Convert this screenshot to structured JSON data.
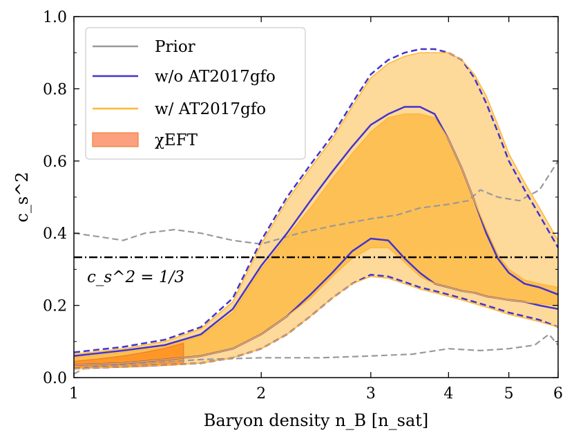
{
  "chart_data": {
    "type": "line",
    "title": "",
    "xlabel": "Baryon density n_B [n_sat]",
    "ylabel": "c_s^2",
    "x_scale": "log",
    "xlim": [
      1,
      6
    ],
    "ylim": [
      0,
      1
    ],
    "x_ticks": [
      1,
      2,
      3,
      4,
      5,
      6
    ],
    "x_tick_labels": [
      "1",
      "2",
      "3",
      "4",
      "5",
      "6"
    ],
    "y_ticks": [
      0.0,
      0.2,
      0.4,
      0.6,
      0.8,
      1.0
    ],
    "y_tick_labels": [
      "0.0",
      "0.2",
      "0.4",
      "0.6",
      "0.8",
      "1.0"
    ],
    "legend_location": "top-left",
    "legend": [
      {
        "key": "prior",
        "label": "Prior"
      },
      {
        "key": "wo",
        "label": "w/o AT2017gfo"
      },
      {
        "key": "w",
        "label": "w/ AT2017gfo"
      },
      {
        "key": "eft",
        "label": "χEFT"
      }
    ],
    "annotation": "c_s^2 = 1/3",
    "conformal_limit": 0.3333,
    "colors": {
      "prior": "#999999",
      "wo": "#4433cc",
      "w_line": "#ffb733",
      "w_fill_90": "#fdd99a",
      "w_fill_68": "#fcc055",
      "eft_fill": "#ff8c1a",
      "eft_edge": "#f08030",
      "eft_legend": "#fca080",
      "black": "#000000"
    },
    "series": [
      {
        "name": "Prior (upper)",
        "key": "prior",
        "style": "dashed",
        "x": [
          1.0,
          1.1,
          1.2,
          1.3,
          1.45,
          1.6,
          1.8,
          2.0,
          2.3,
          2.6,
          3.0,
          3.3,
          3.6,
          4.0,
          4.3,
          4.5,
          4.8,
          5.2,
          5.6,
          6.0
        ],
        "y": [
          0.4,
          0.39,
          0.38,
          0.4,
          0.41,
          0.4,
          0.38,
          0.37,
          0.4,
          0.42,
          0.44,
          0.45,
          0.47,
          0.48,
          0.49,
          0.52,
          0.5,
          0.49,
          0.52,
          0.6
        ]
      },
      {
        "name": "Prior (lower)",
        "key": "prior",
        "style": "dashed",
        "x": [
          1.0,
          1.05,
          1.3,
          1.6,
          2.0,
          2.5,
          3.0,
          3.5,
          4.0,
          4.5,
          5.0,
          5.5,
          5.8,
          6.0
        ],
        "y": [
          0.01,
          0.03,
          0.04,
          0.05,
          0.055,
          0.055,
          0.06,
          0.065,
          0.08,
          0.075,
          0.08,
          0.09,
          0.12,
          0.09
        ]
      },
      {
        "name": "w/o AT2017gfo 90% upper",
        "key": "wo",
        "style": "dashed",
        "x": [
          1.0,
          1.2,
          1.4,
          1.6,
          1.8,
          2.0,
          2.2,
          2.4,
          2.6,
          2.8,
          3.0,
          3.2,
          3.4,
          3.6,
          3.8,
          4.0,
          4.2,
          4.4,
          4.6,
          4.8,
          5.0,
          5.3,
          5.6,
          6.0
        ],
        "y": [
          0.07,
          0.085,
          0.105,
          0.14,
          0.22,
          0.38,
          0.5,
          0.59,
          0.67,
          0.76,
          0.84,
          0.88,
          0.9,
          0.91,
          0.91,
          0.9,
          0.88,
          0.83,
          0.76,
          0.68,
          0.6,
          0.52,
          0.45,
          0.36
        ]
      },
      {
        "name": "w/o AT2017gfo 68% upper",
        "key": "wo",
        "style": "solid",
        "x": [
          1.0,
          1.2,
          1.4,
          1.6,
          1.8,
          2.0,
          2.2,
          2.4,
          2.6,
          2.8,
          3.0,
          3.2,
          3.4,
          3.6,
          3.8,
          4.0,
          4.2,
          4.4,
          4.6,
          4.8,
          5.0,
          5.3,
          5.6,
          6.0
        ],
        "y": [
          0.06,
          0.075,
          0.09,
          0.12,
          0.19,
          0.31,
          0.4,
          0.49,
          0.57,
          0.64,
          0.7,
          0.73,
          0.75,
          0.75,
          0.73,
          0.66,
          0.58,
          0.49,
          0.4,
          0.33,
          0.29,
          0.26,
          0.25,
          0.23
        ]
      },
      {
        "name": "w/o AT2017gfo 68% lower",
        "key": "wo",
        "style": "solid",
        "x": [
          1.0,
          1.2,
          1.4,
          1.6,
          1.8,
          2.0,
          2.2,
          2.4,
          2.6,
          2.8,
          3.0,
          3.2,
          3.4,
          3.6,
          3.8,
          4.0,
          4.2,
          4.4,
          4.6,
          4.8,
          5.0,
          5.3,
          5.6,
          6.0
        ],
        "y": [
          0.035,
          0.04,
          0.05,
          0.06,
          0.08,
          0.12,
          0.17,
          0.23,
          0.29,
          0.35,
          0.385,
          0.38,
          0.33,
          0.29,
          0.26,
          0.25,
          0.24,
          0.235,
          0.225,
          0.22,
          0.215,
          0.21,
          0.2,
          0.19
        ]
      },
      {
        "name": "w/o AT2017gfo 90% lower",
        "key": "wo",
        "style": "dashed",
        "x": [
          1.0,
          1.2,
          1.4,
          1.6,
          1.8,
          2.0,
          2.2,
          2.4,
          2.6,
          2.8,
          3.0,
          3.2,
          3.4,
          3.6,
          3.8,
          4.0,
          4.2,
          4.4,
          4.6,
          4.8,
          5.0,
          5.3,
          5.6,
          6.0
        ],
        "y": [
          0.025,
          0.03,
          0.035,
          0.04,
          0.055,
          0.08,
          0.12,
          0.17,
          0.22,
          0.26,
          0.285,
          0.28,
          0.265,
          0.25,
          0.24,
          0.23,
          0.22,
          0.21,
          0.2,
          0.19,
          0.18,
          0.17,
          0.16,
          0.14
        ]
      },
      {
        "name": "w/ AT2017gfo 90% upper",
        "key": "w",
        "style": "solid",
        "x": [
          1.0,
          1.2,
          1.4,
          1.6,
          1.8,
          2.0,
          2.2,
          2.4,
          2.6,
          2.8,
          3.0,
          3.2,
          3.4,
          3.6,
          3.8,
          4.0,
          4.2,
          4.4,
          4.6,
          4.8,
          5.0,
          5.3,
          5.6,
          6.0
        ],
        "y": [
          0.065,
          0.08,
          0.1,
          0.135,
          0.21,
          0.37,
          0.49,
          0.58,
          0.66,
          0.75,
          0.83,
          0.87,
          0.89,
          0.9,
          0.9,
          0.9,
          0.88,
          0.84,
          0.78,
          0.7,
          0.62,
          0.54,
          0.47,
          0.38
        ]
      },
      {
        "name": "w/ AT2017gfo 68% upper",
        "key": "w",
        "style": "solid",
        "x": [
          1.0,
          1.2,
          1.4,
          1.6,
          1.8,
          2.0,
          2.2,
          2.4,
          2.6,
          2.8,
          3.0,
          3.2,
          3.4,
          3.6,
          3.8,
          4.0,
          4.2,
          4.4,
          4.6,
          4.8,
          5.0,
          5.3,
          5.6,
          6.0
        ],
        "y": [
          0.055,
          0.07,
          0.085,
          0.115,
          0.18,
          0.3,
          0.39,
          0.47,
          0.55,
          0.62,
          0.68,
          0.72,
          0.73,
          0.73,
          0.72,
          0.66,
          0.58,
          0.49,
          0.41,
          0.34,
          0.3,
          0.27,
          0.26,
          0.25
        ]
      },
      {
        "name": "w/ AT2017gfo 68% lower",
        "key": "w",
        "style": "solid",
        "x": [
          1.0,
          1.2,
          1.4,
          1.6,
          1.8,
          2.0,
          2.2,
          2.4,
          2.6,
          2.8,
          3.0,
          3.2,
          3.4,
          3.6,
          3.8,
          4.0,
          4.2,
          4.4,
          4.6,
          4.8,
          5.0,
          5.3,
          5.6,
          6.0
        ],
        "y": [
          0.035,
          0.04,
          0.05,
          0.06,
          0.08,
          0.12,
          0.17,
          0.22,
          0.28,
          0.33,
          0.36,
          0.36,
          0.32,
          0.28,
          0.26,
          0.25,
          0.24,
          0.235,
          0.225,
          0.22,
          0.215,
          0.21,
          0.205,
          0.2
        ]
      },
      {
        "name": "w/ AT2017gfo 90% lower",
        "key": "w",
        "style": "solid",
        "x": [
          1.0,
          1.2,
          1.4,
          1.6,
          1.8,
          2.0,
          2.2,
          2.4,
          2.6,
          2.8,
          3.0,
          3.2,
          3.4,
          3.6,
          3.8,
          4.0,
          4.2,
          4.4,
          4.6,
          4.8,
          5.0,
          5.3,
          5.6,
          6.0
        ],
        "y": [
          0.025,
          0.03,
          0.035,
          0.04,
          0.055,
          0.08,
          0.12,
          0.17,
          0.22,
          0.26,
          0.28,
          0.275,
          0.26,
          0.245,
          0.235,
          0.225,
          0.215,
          0.205,
          0.195,
          0.185,
          0.175,
          0.165,
          0.155,
          0.14
        ]
      }
    ],
    "eft_band": {
      "x": [
        1.0,
        1.1,
        1.2,
        1.3,
        1.4,
        1.5
      ],
      "upper": [
        0.045,
        0.052,
        0.06,
        0.07,
        0.081,
        0.095
      ],
      "lower": [
        0.025,
        0.027,
        0.029,
        0.031,
        0.034,
        0.037
      ]
    }
  }
}
